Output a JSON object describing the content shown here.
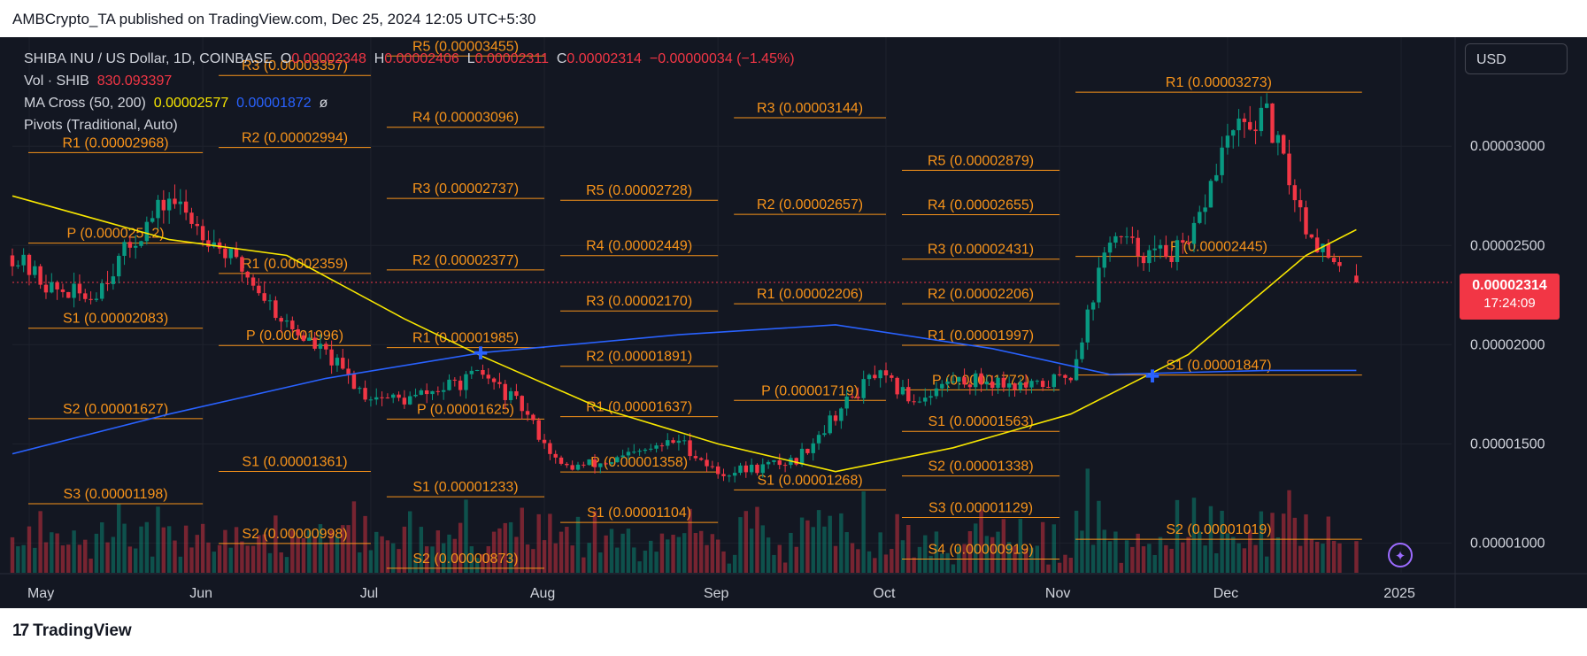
{
  "header": {
    "published": "AMBCrypto_TA published on TradingView.com, Dec 25, 2024 12:05 UTC+5:30"
  },
  "legend": {
    "symbol": "SHIBA INU / US Dollar, 1D, COINBASE",
    "o_label": "O",
    "o_value": "0.00002348",
    "h_label": "H",
    "h_value": "0.00002406",
    "l_label": "L",
    "l_value": "0.00002311",
    "c_label": "C",
    "c_value": "0.00002314",
    "change": "−0.00000034 (−1.45%)",
    "vol_label": "Vol · SHIB",
    "vol_value": "830.093397",
    "ma_label": "MA Cross (50, 200)",
    "ma50_value": "0.00002577",
    "ma200_value": "0.00001872",
    "ma_suffix": "ø",
    "pivots_label": "Pivots (Traditional, Auto)"
  },
  "controls": {
    "currency_button": "USD"
  },
  "price_tag": {
    "price": "0.00002314",
    "countdown": "17:24:09"
  },
  "branding": {
    "logo_text": "TradingView",
    "logo_mark": "17"
  },
  "colors": {
    "bg": "#131722",
    "up": "#089981",
    "down": "#f23645",
    "pivot": "#f7931a",
    "ma50": "#f7e600",
    "ma200": "#2962ff"
  },
  "chart_data": {
    "type": "candlestick",
    "title": "SHIBA INU / US Dollar, 1D, COINBASE",
    "x_tick_labels": [
      "May",
      "Jun",
      "Jul",
      "Aug",
      "Sep",
      "Oct",
      "Nov",
      "Dec",
      "2025"
    ],
    "y_tick_labels": [
      "0.00003000",
      "0.00002500",
      "0.00002000",
      "0.00001500",
      "0.00001000"
    ],
    "ylim": [
      8.5e-06,
      3.55e-05
    ],
    "grid": true,
    "current_price": 2.314e-05,
    "monthly_close_path": [
      {
        "date": "2024-04-28",
        "price": 2.45e-05
      },
      {
        "date": "2024-05-05",
        "price": 2.28e-05
      },
      {
        "date": "2024-05-12",
        "price": 2.24e-05
      },
      {
        "date": "2024-05-19",
        "price": 2.5e-05
      },
      {
        "date": "2024-05-26",
        "price": 2.74e-05
      },
      {
        "date": "2024-06-02",
        "price": 2.55e-05
      },
      {
        "date": "2024-06-09",
        "price": 2.35e-05
      },
      {
        "date": "2024-06-16",
        "price": 2.1e-05
      },
      {
        "date": "2024-06-23",
        "price": 1.95e-05
      },
      {
        "date": "2024-06-30",
        "price": 1.75e-05
      },
      {
        "date": "2024-07-07",
        "price": 1.72e-05
      },
      {
        "date": "2024-07-14",
        "price": 1.78e-05
      },
      {
        "date": "2024-07-21",
        "price": 1.85e-05
      },
      {
        "date": "2024-07-28",
        "price": 1.68e-05
      },
      {
        "date": "2024-08-04",
        "price": 1.38e-05
      },
      {
        "date": "2024-08-11",
        "price": 1.4e-05
      },
      {
        "date": "2024-08-18",
        "price": 1.45e-05
      },
      {
        "date": "2024-08-25",
        "price": 1.52e-05
      },
      {
        "date": "2024-09-01",
        "price": 1.35e-05
      },
      {
        "date": "2024-09-08",
        "price": 1.38e-05
      },
      {
        "date": "2024-09-15",
        "price": 1.42e-05
      },
      {
        "date": "2024-09-22",
        "price": 1.65e-05
      },
      {
        "date": "2024-09-29",
        "price": 1.85e-05
      },
      {
        "date": "2024-10-06",
        "price": 1.72e-05
      },
      {
        "date": "2024-10-13",
        "price": 1.82e-05
      },
      {
        "date": "2024-10-20",
        "price": 1.82e-05
      },
      {
        "date": "2024-10-27",
        "price": 1.78e-05
      },
      {
        "date": "2024-11-03",
        "price": 1.85e-05
      },
      {
        "date": "2024-11-10",
        "price": 2.55e-05
      },
      {
        "date": "2024-11-17",
        "price": 2.45e-05
      },
      {
        "date": "2024-11-24",
        "price": 2.48e-05
      },
      {
        "date": "2024-12-01",
        "price": 3.05e-05
      },
      {
        "date": "2024-12-08",
        "price": 3.15e-05
      },
      {
        "date": "2024-12-15",
        "price": 2.6e-05
      },
      {
        "date": "2024-12-22",
        "price": 2.31e-05
      }
    ],
    "ma50_path": [
      {
        "date": "2024-04-28",
        "price": 2.75e-05
      },
      {
        "date": "2024-05-26",
        "price": 2.53e-05
      },
      {
        "date": "2024-06-16",
        "price": 2.45e-05
      },
      {
        "date": "2024-07-07",
        "price": 2.13e-05
      },
      {
        "date": "2024-07-21",
        "price": 1.94e-05
      },
      {
        "date": "2024-08-11",
        "price": 1.68e-05
      },
      {
        "date": "2024-09-01",
        "price": 1.5e-05
      },
      {
        "date": "2024-09-22",
        "price": 1.36e-05
      },
      {
        "date": "2024-10-13",
        "price": 1.48e-05
      },
      {
        "date": "2024-11-03",
        "price": 1.65e-05
      },
      {
        "date": "2024-11-24",
        "price": 1.95e-05
      },
      {
        "date": "2024-12-15",
        "price": 2.45e-05
      },
      {
        "date": "2024-12-24",
        "price": 2.58e-05
      }
    ],
    "ma200_path": [
      {
        "date": "2024-04-28",
        "price": 1.45e-05
      },
      {
        "date": "2024-05-26",
        "price": 1.65e-05
      },
      {
        "date": "2024-06-23",
        "price": 1.83e-05
      },
      {
        "date": "2024-07-21",
        "price": 1.96e-05
      },
      {
        "date": "2024-08-25",
        "price": 2.05e-05
      },
      {
        "date": "2024-09-22",
        "price": 2.1e-05
      },
      {
        "date": "2024-10-20",
        "price": 1.98e-05
      },
      {
        "date": "2024-11-10",
        "price": 1.85e-05
      },
      {
        "date": "2024-12-08",
        "price": 1.87e-05
      },
      {
        "date": "2024-12-24",
        "price": 1.87e-05
      }
    ],
    "pivot_labels": [
      {
        "label": "R1 (0.00002968)",
        "price": 2.968e-05,
        "period": 1
      },
      {
        "label": "P (0.00002512)",
        "price": 2.512e-05,
        "period": 1
      },
      {
        "label": "S1 (0.00002083)",
        "price": 2.083e-05,
        "period": 1
      },
      {
        "label": "S2 (0.00001627)",
        "price": 1.627e-05,
        "period": 1
      },
      {
        "label": "S3 (0.00001198)",
        "price": 1.198e-05,
        "period": 1
      },
      {
        "label": "R3 (0.00003357)",
        "price": 3.357e-05,
        "period": 2
      },
      {
        "label": "R2 (0.00002994)",
        "price": 2.994e-05,
        "period": 2
      },
      {
        "label": "R1 (0.00002359)",
        "price": 2.359e-05,
        "period": 2
      },
      {
        "label": "P (0.00001996)",
        "price": 1.996e-05,
        "period": 2
      },
      {
        "label": "S1 (0.00001361)",
        "price": 1.361e-05,
        "period": 2
      },
      {
        "label": "S2 (0.00000998)",
        "price": 9.98e-06,
        "period": 2
      },
      {
        "label": "R5 (0.00003455)",
        "price": 3.455e-05,
        "period": 3
      },
      {
        "label": "R4 (0.00003096)",
        "price": 3.096e-05,
        "period": 3
      },
      {
        "label": "R3 (0.00002737)",
        "price": 2.737e-05,
        "period": 3
      },
      {
        "label": "R2 (0.00002377)",
        "price": 2.377e-05,
        "period": 3
      },
      {
        "label": "R1 (0.00001985)",
        "price": 1.985e-05,
        "period": 3
      },
      {
        "label": "P (0.00001625)",
        "price": 1.625e-05,
        "period": 3
      },
      {
        "label": "S1 (0.00001233)",
        "price": 1.233e-05,
        "period": 3
      },
      {
        "label": "S2 (0.00000873)",
        "price": 8.73e-06,
        "period": 3
      },
      {
        "label": "R5 (0.00002728)",
        "price": 2.728e-05,
        "period": 4
      },
      {
        "label": "R4 (0.00002449)",
        "price": 2.449e-05,
        "period": 4
      },
      {
        "label": "R3 (0.00002170)",
        "price": 2.17e-05,
        "period": 4
      },
      {
        "label": "R2 (0.00001891)",
        "price": 1.891e-05,
        "period": 4
      },
      {
        "label": "R1 (0.00001637)",
        "price": 1.637e-05,
        "period": 4
      },
      {
        "label": "P (0.00001358)",
        "price": 1.358e-05,
        "period": 4
      },
      {
        "label": "S1 (0.00001104)",
        "price": 1.104e-05,
        "period": 4
      },
      {
        "label": "R3 (0.00003144)",
        "price": 3.144e-05,
        "period": 5
      },
      {
        "label": "R2 (0.00002657)",
        "price": 2.657e-05,
        "period": 5
      },
      {
        "label": "R1 (0.00002206)",
        "price": 2.206e-05,
        "period": 5
      },
      {
        "label": "P (0.00001719)",
        "price": 1.719e-05,
        "period": 5
      },
      {
        "label": "S1 (0.00001268)",
        "price": 1.268e-05,
        "period": 5
      },
      {
        "label": "R5 (0.00002879)",
        "price": 2.879e-05,
        "period": 6
      },
      {
        "label": "R4 (0.00002655)",
        "price": 2.655e-05,
        "period": 6
      },
      {
        "label": "R3 (0.00002431)",
        "price": 2.431e-05,
        "period": 6
      },
      {
        "label": "R2 (0.00002206)",
        "price": 2.206e-05,
        "period": 6
      },
      {
        "label": "R1 (0.00001997)",
        "price": 1.997e-05,
        "period": 6
      },
      {
        "label": "P (0.00001772)",
        "price": 1.772e-05,
        "period": 6
      },
      {
        "label": "S1 (0.00001563)",
        "price": 1.563e-05,
        "period": 6
      },
      {
        "label": "S2 (0.00001338)",
        "price": 1.338e-05,
        "period": 6
      },
      {
        "label": "S3 (0.00001129)",
        "price": 1.129e-05,
        "period": 6
      },
      {
        "label": "S4 (0.00000919)",
        "price": 9.19e-06,
        "period": 6
      },
      {
        "label": "R1 (0.00003273)",
        "price": 3.273e-05,
        "period": 7
      },
      {
        "label": "P (0.00002445)",
        "price": 2.445e-05,
        "period": 7
      },
      {
        "label": "S1 (0.00001847)",
        "price": 1.847e-05,
        "period": 7
      },
      {
        "label": "S2 (0.00001019)",
        "price": 1.019e-05,
        "period": 7
      }
    ]
  }
}
